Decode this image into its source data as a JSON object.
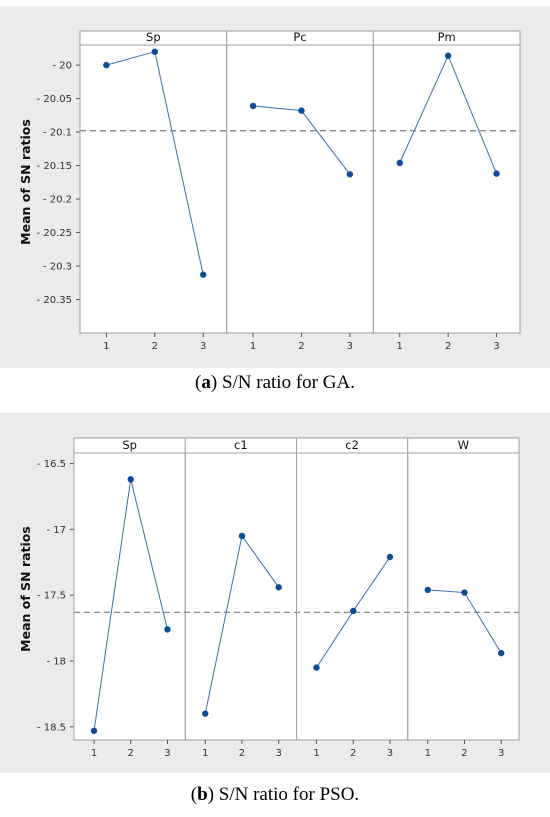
{
  "captions": [
    {
      "label": "a",
      "text": ") S/N ratio for GA."
    },
    {
      "label": "b",
      "text": ") S/N ratio for PSO."
    }
  ],
  "colors": {
    "line": "#3a6fb0",
    "marker": "#0f4c96",
    "refline": "#7a7a7a",
    "frame": "#a0a0a0"
  },
  "chart_data": [
    {
      "type": "line",
      "ylabel": "Mean of SN ratios",
      "ylim": [
        -20.4,
        -19.97
      ],
      "yticks": [
        -20,
        -20.05,
        -20.1,
        -20.15,
        -20.2,
        -20.25,
        -20.3,
        -20.35
      ],
      "ytick_labels": [
        "- 20",
        "- 20.05",
        "- 20.1",
        "- 20.15",
        "- 20.2",
        "- 20.25",
        "- 20.3",
        "- 20.35"
      ],
      "reference_line": -20.098,
      "x": [
        1,
        2,
        3
      ],
      "panels": [
        {
          "name": "Sp",
          "values": [
            -20.0,
            -19.98,
            -20.313
          ]
        },
        {
          "name": "Pc",
          "values": [
            -20.061,
            -20.068,
            -20.163
          ]
        },
        {
          "name": "Pm",
          "values": [
            -20.146,
            -19.986,
            -20.162
          ]
        }
      ]
    },
    {
      "type": "line",
      "ylabel": "Mean of SN ratios",
      "ylim": [
        -18.6,
        -16.42
      ],
      "yticks": [
        -16.5,
        -17,
        -17.5,
        -18,
        -18.5
      ],
      "ytick_labels": [
        "- 16.5",
        "- 17",
        "- 17.5",
        "- 18",
        "- 18.5"
      ],
      "reference_line": -17.63,
      "x": [
        1,
        2,
        3
      ],
      "panels": [
        {
          "name": "Sp",
          "values": [
            -18.53,
            -16.62,
            -17.76
          ]
        },
        {
          "name": "c1",
          "values": [
            -18.4,
            -17.05,
            -17.44
          ]
        },
        {
          "name": "c2",
          "values": [
            -18.05,
            -17.62,
            -17.21
          ]
        },
        {
          "name": "W",
          "values": [
            -17.46,
            -17.48,
            -17.94
          ]
        }
      ]
    }
  ]
}
